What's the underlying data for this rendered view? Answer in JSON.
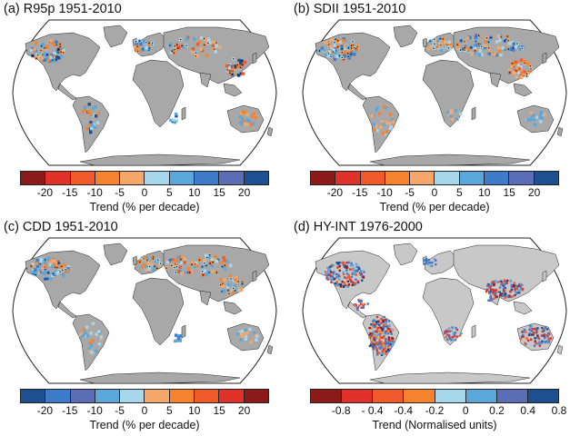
{
  "colors": {
    "ocean": "#ffffff",
    "land": "#a8a8a8",
    "land_alt": "#c8c8c8",
    "outline": "#222222",
    "dark_red": "#8b1a1a",
    "red": "#e0312b",
    "orange_red": "#f05a2b",
    "orange": "#f4822f",
    "light_orange": "#f6a76a",
    "light_blue": "#a7d7ea",
    "mid_blue": "#5aa7dc",
    "blue": "#3f7bc8",
    "violet_blue": "#5a6db5",
    "dark_blue": "#1d4f91",
    "stipple": "#000000"
  },
  "panels": [
    {
      "id": "a",
      "title": "(a) R95p 1951-2010",
      "colorbar": {
        "label": "Trend (% per decade)",
        "ticks": [
          "-20",
          "-15",
          "-10",
          "-5",
          "0",
          "5",
          "10",
          "15",
          "20"
        ],
        "colors": [
          "dark_red",
          "red",
          "orange_red",
          "orange",
          "light_orange",
          "light_blue",
          "mid_blue",
          "blue",
          "violet_blue",
          "dark_blue"
        ]
      }
    },
    {
      "id": "b",
      "title": "(b) SDII 1951-2010",
      "colorbar": {
        "label": "Trend (% per decade)",
        "ticks": [
          "-20",
          "-15",
          "-10",
          "-5",
          "0",
          "5",
          "10",
          "15",
          "20"
        ],
        "colors": [
          "dark_red",
          "red",
          "orange_red",
          "orange",
          "light_orange",
          "light_blue",
          "mid_blue",
          "blue",
          "violet_blue",
          "dark_blue"
        ]
      }
    },
    {
      "id": "c",
      "title": "(c) CDD 1951-2010",
      "colorbar": {
        "label": "Trend (% per decade)",
        "ticks": [
          "-20",
          "-15",
          "-10",
          "-5",
          "0",
          "5",
          "10",
          "15",
          "20"
        ],
        "colors": [
          "dark_blue",
          "blue",
          "violet_blue",
          "mid_blue",
          "light_blue",
          "light_orange",
          "orange",
          "orange_red",
          "red",
          "dark_red"
        ]
      }
    },
    {
      "id": "d",
      "title": "(d) HY-INT 1976-2000",
      "colorbar": {
        "label": "Trend (Normalised units)",
        "ticks": [
          "-0.8",
          "- 0.4",
          "-0.4",
          "-0.2",
          "0",
          "0.2",
          "0.4",
          "0.8"
        ],
        "colors": [
          "dark_red",
          "red",
          "orange_red",
          "orange",
          "light_blue",
          "mid_blue",
          "violet_blue",
          "dark_blue"
        ]
      }
    }
  ]
}
